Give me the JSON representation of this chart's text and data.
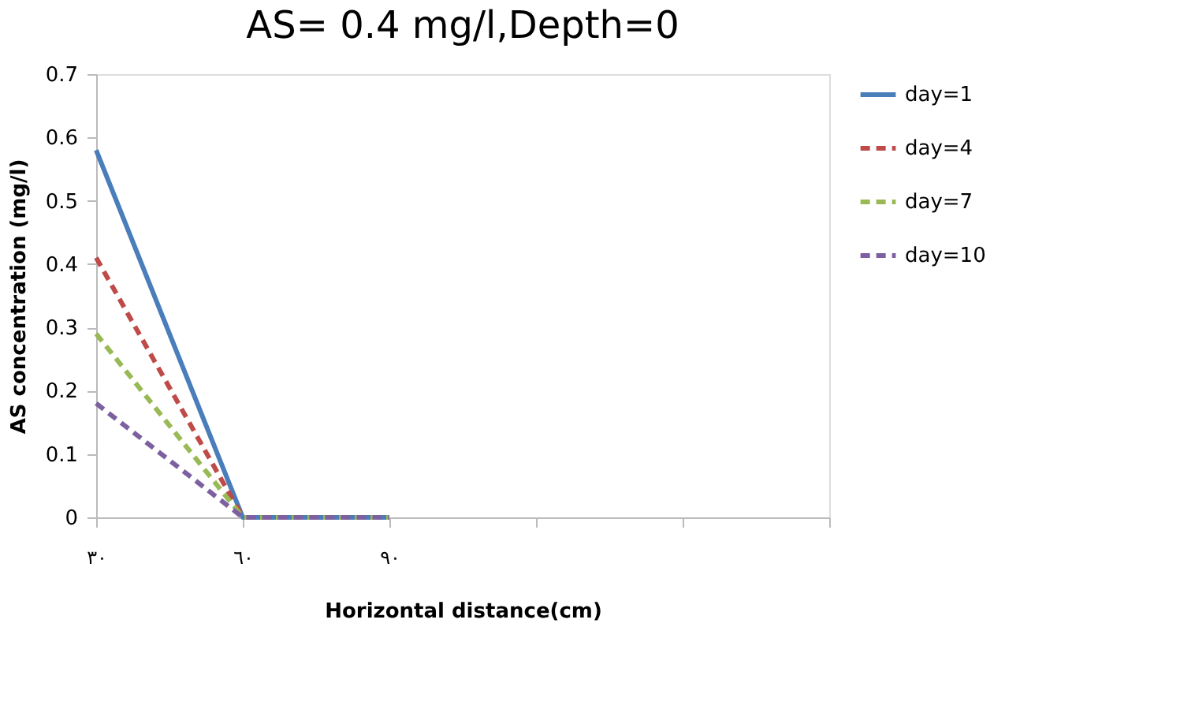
{
  "chart_data": {
    "type": "line",
    "title": "AS= 0.4 mg/l,Depth=0",
    "xlabel": "Horizontal distance(cm)",
    "ylabel": "AS concentration (mg/l)",
    "categories": [
      "٣٠",
      "٦٠",
      "٩٠",
      null,
      null,
      null
    ],
    "series": [
      {
        "name": "day=1",
        "color": "#4a7ebb",
        "line_style": "solid",
        "values": [
          0.58,
          0,
          0,
          null,
          null,
          null
        ]
      },
      {
        "name": "day=4",
        "color": "#be4b48",
        "line_style": "dashed",
        "values": [
          0.41,
          0,
          0,
          null,
          null,
          null
        ]
      },
      {
        "name": "day=7",
        "color": "#98b954",
        "line_style": "dashed",
        "values": [
          0.29,
          0,
          0,
          null,
          null,
          null
        ]
      },
      {
        "name": "day=10",
        "color": "#7d60a0",
        "line_style": "dashed",
        "values": [
          0.18,
          0,
          0,
          null,
          null,
          null
        ]
      }
    ],
    "ylim": [
      0,
      0.7
    ],
    "yticks": [
      0,
      0.1,
      0.2,
      0.3,
      0.4,
      0.5,
      0.6,
      0.7
    ],
    "grid": false,
    "legend": "right",
    "marker": "none"
  }
}
